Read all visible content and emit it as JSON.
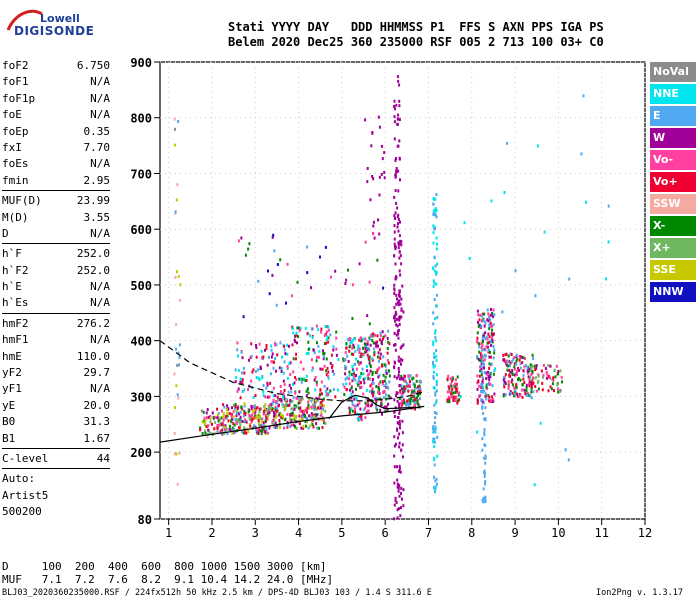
{
  "logo": {
    "line1": "Lowell",
    "line2": "DIGISONDE"
  },
  "header": {
    "line1": "Stati YYYY DAY   DDD HHMMSS P1  FFS S AXN PPS IGA PS",
    "line2": "Belem 2020 Dec25 360 235000 RSF 005 2 713 100 03+ C0"
  },
  "params": [
    {
      "k": "foF2",
      "v": "6.750"
    },
    {
      "k": "foF1",
      "v": "N/A"
    },
    {
      "k": "foF1p",
      "v": "N/A"
    },
    {
      "k": "foE",
      "v": "N/A"
    },
    {
      "k": "foEp",
      "v": "0.35"
    },
    {
      "k": "fxI",
      "v": "7.70"
    },
    {
      "k": "foEs",
      "v": "N/A"
    },
    {
      "k": "fmin",
      "v": "2.95"
    },
    {
      "sep": true
    },
    {
      "k": "MUF(D)",
      "v": "23.99"
    },
    {
      "k": "M(D)",
      "v": "3.55"
    },
    {
      "k": "D",
      "v": "N/A"
    },
    {
      "sep": true
    },
    {
      "k": "h`F",
      "v": "252.0"
    },
    {
      "k": "h`F2",
      "v": "252.0"
    },
    {
      "k": "h`E",
      "v": "N/A"
    },
    {
      "k": "h`Es",
      "v": "N/A"
    },
    {
      "sep": true
    },
    {
      "k": "hmF2",
      "v": "276.2"
    },
    {
      "k": "hmF1",
      "v": "N/A"
    },
    {
      "k": "hmE",
      "v": "110.0"
    },
    {
      "k": "yF2",
      "v": "29.7"
    },
    {
      "k": "yF1",
      "v": "N/A"
    },
    {
      "k": "yE",
      "v": "20.0"
    },
    {
      "k": "B0",
      "v": "31.3"
    },
    {
      "k": "B1",
      "v": "1.67"
    },
    {
      "sep": true
    },
    {
      "k": "C-level",
      "v": "44"
    },
    {
      "sep": true
    },
    {
      "k": "Auto:",
      "v": ""
    },
    {
      "k": "Artist5",
      "v": ""
    },
    {
      "k": "500200",
      "v": ""
    }
  ],
  "legend": [
    {
      "label": "NoVal",
      "color": "#8c8c8c"
    },
    {
      "label": "NNE",
      "color": "#00e5ee"
    },
    {
      "label": "E",
      "color": "#4fa8f0"
    },
    {
      "label": "W",
      "color": "#a00098"
    },
    {
      "label": "Vo-",
      "color": "#ff40a0"
    },
    {
      "label": "Vo+",
      "color": "#ee0030"
    },
    {
      "label": "SSW",
      "color": "#f4aaa0"
    },
    {
      "label": "X-",
      "color": "#008800"
    },
    {
      "label": "X+",
      "color": "#70b860"
    },
    {
      "label": "SSE",
      "color": "#c8c800"
    },
    {
      "label": "NNW",
      "color": "#1010c0"
    }
  ],
  "footer": {
    "line1": "D     100  200  400  600  800 1000 1500 3000 [km]",
    "line2": "MUF   7.1  7.2  7.6  8.2  9.1 10.4 14.2 24.0 [MHz]",
    "line3": "BLJ03_2020360235000.RSF / 224fx512h 50 kHz 2.5 km / DPS-4D BLJ03 103 / 1.4 S 311.6 E",
    "version": "Ion2Png v. 1.3.17"
  },
  "chart_data": {
    "type": "scatter",
    "xlabel": "",
    "ylabel": "",
    "xlim": [
      0.8,
      12
    ],
    "ylim": [
      80,
      900
    ],
    "xticks": [
      1,
      2,
      3,
      4,
      5,
      6,
      7,
      8,
      9,
      10,
      11,
      12
    ],
    "yticks": [
      80,
      200,
      300,
      400,
      500,
      600,
      700,
      800,
      900
    ],
    "clusters": [
      {
        "x": [
          1.7,
          2.2
        ],
        "y": [
          230,
          280
        ],
        "count": 60,
        "mix": [
          0,
          2,
          3,
          4,
          5,
          6,
          7,
          8,
          9
        ]
      },
      {
        "x": [
          2.2,
          3.3
        ],
        "y": [
          235,
          290
        ],
        "count": 220,
        "mix": [
          2,
          3,
          4,
          5,
          7,
          8,
          9
        ]
      },
      {
        "x": [
          3.3,
          4.6
        ],
        "y": [
          245,
          300
        ],
        "count": 240,
        "mix": [
          2,
          3,
          4,
          5,
          7,
          8,
          9
        ]
      },
      {
        "x": [
          2.5,
          3.8
        ],
        "y": [
          300,
          400
        ],
        "count": 120,
        "mix": [
          1,
          2,
          3,
          4,
          5
        ]
      },
      {
        "x": [
          3.8,
          4.9
        ],
        "y": [
          300,
          430
        ],
        "count": 140,
        "mix": [
          1,
          2,
          3,
          4,
          5,
          7
        ]
      },
      {
        "x": [
          5.0,
          5.6
        ],
        "y": [
          260,
          410
        ],
        "count": 180,
        "mix": [
          1,
          2,
          3,
          4,
          5,
          7
        ]
      },
      {
        "x": [
          5.6,
          6.1
        ],
        "y": [
          270,
          420
        ],
        "count": 150,
        "mix": [
          2,
          3,
          4,
          5,
          7
        ]
      },
      {
        "x": [
          6.3,
          6.8
        ],
        "y": [
          280,
          340
        ],
        "count": 120,
        "mix": [
          4,
          5,
          7,
          2
        ]
      },
      {
        "x": [
          7.4,
          7.7
        ],
        "y": [
          290,
          340
        ],
        "count": 60,
        "mix": [
          4,
          5,
          7
        ]
      },
      {
        "x": [
          8.1,
          8.5
        ],
        "y": [
          290,
          460
        ],
        "count": 170,
        "mix": [
          3,
          4,
          5,
          7,
          2
        ]
      },
      {
        "x": [
          8.7,
          9.4
        ],
        "y": [
          300,
          380
        ],
        "count": 150,
        "mix": [
          3,
          4,
          5,
          7,
          2
        ]
      },
      {
        "x": [
          9.3,
          10.1
        ],
        "y": [
          310,
          360
        ],
        "count": 60,
        "mix": [
          3,
          4,
          5,
          7,
          8
        ]
      },
      {
        "x": [
          6.18,
          6.32
        ],
        "y": [
          80,
          880
        ],
        "count": 160,
        "mix": [
          3
        ]
      },
      {
        "x": [
          6.28,
          6.4
        ],
        "y": [
          80,
          600
        ],
        "count": 60,
        "mix": [
          3
        ]
      },
      {
        "x": [
          7.08,
          7.18
        ],
        "y": [
          120,
          670
        ],
        "count": 110,
        "mix": [
          2,
          1
        ]
      },
      {
        "x": [
          8.2,
          8.3
        ],
        "y": [
          110,
          450
        ],
        "count": 50,
        "mix": [
          2
        ]
      },
      {
        "x": [
          5.5,
          6.0
        ],
        "y": [
          580,
          820
        ],
        "count": 25,
        "mix": [
          3
        ]
      },
      {
        "x": [
          1.1,
          1.25
        ],
        "y": [
          140,
          830
        ],
        "count": 30,
        "mix": [
          6,
          9,
          0,
          2
        ]
      },
      {
        "x": [
          2.5,
          6.0
        ],
        "y": [
          430,
          600
        ],
        "count": 40,
        "mix": [
          2,
          3,
          4,
          7,
          10
        ]
      },
      {
        "x": [
          7.3,
          11.2
        ],
        "y": [
          120,
          850
        ],
        "count": 25,
        "mix": [
          1,
          2
        ]
      }
    ],
    "curves": [
      {
        "name": "",
        "style": "solid",
        "x": [
          0.8,
          2.0,
          3.0,
          4.0,
          5.0,
          6.0,
          6.3,
          6.9
        ],
        "y": [
          218,
          232,
          243,
          255,
          265,
          272,
          275,
          282
        ]
      },
      {
        "name": "",
        "style": "dashed",
        "x": [
          0.8,
          1.5,
          2.5,
          3.5,
          4.5,
          5.0,
          5.5,
          6.0,
          6.5,
          6.9
        ],
        "y": [
          400,
          360,
          325,
          305,
          295,
          292,
          292,
          295,
          300,
          308
        ]
      },
      {
        "name": "",
        "style": "solid",
        "x": [
          4.7,
          5.0,
          5.3,
          5.6,
          5.8,
          6.0,
          6.3,
          6.6,
          6.75
        ],
        "y": [
          260,
          290,
          302,
          297,
          285,
          278,
          279,
          280,
          280
        ]
      }
    ]
  }
}
